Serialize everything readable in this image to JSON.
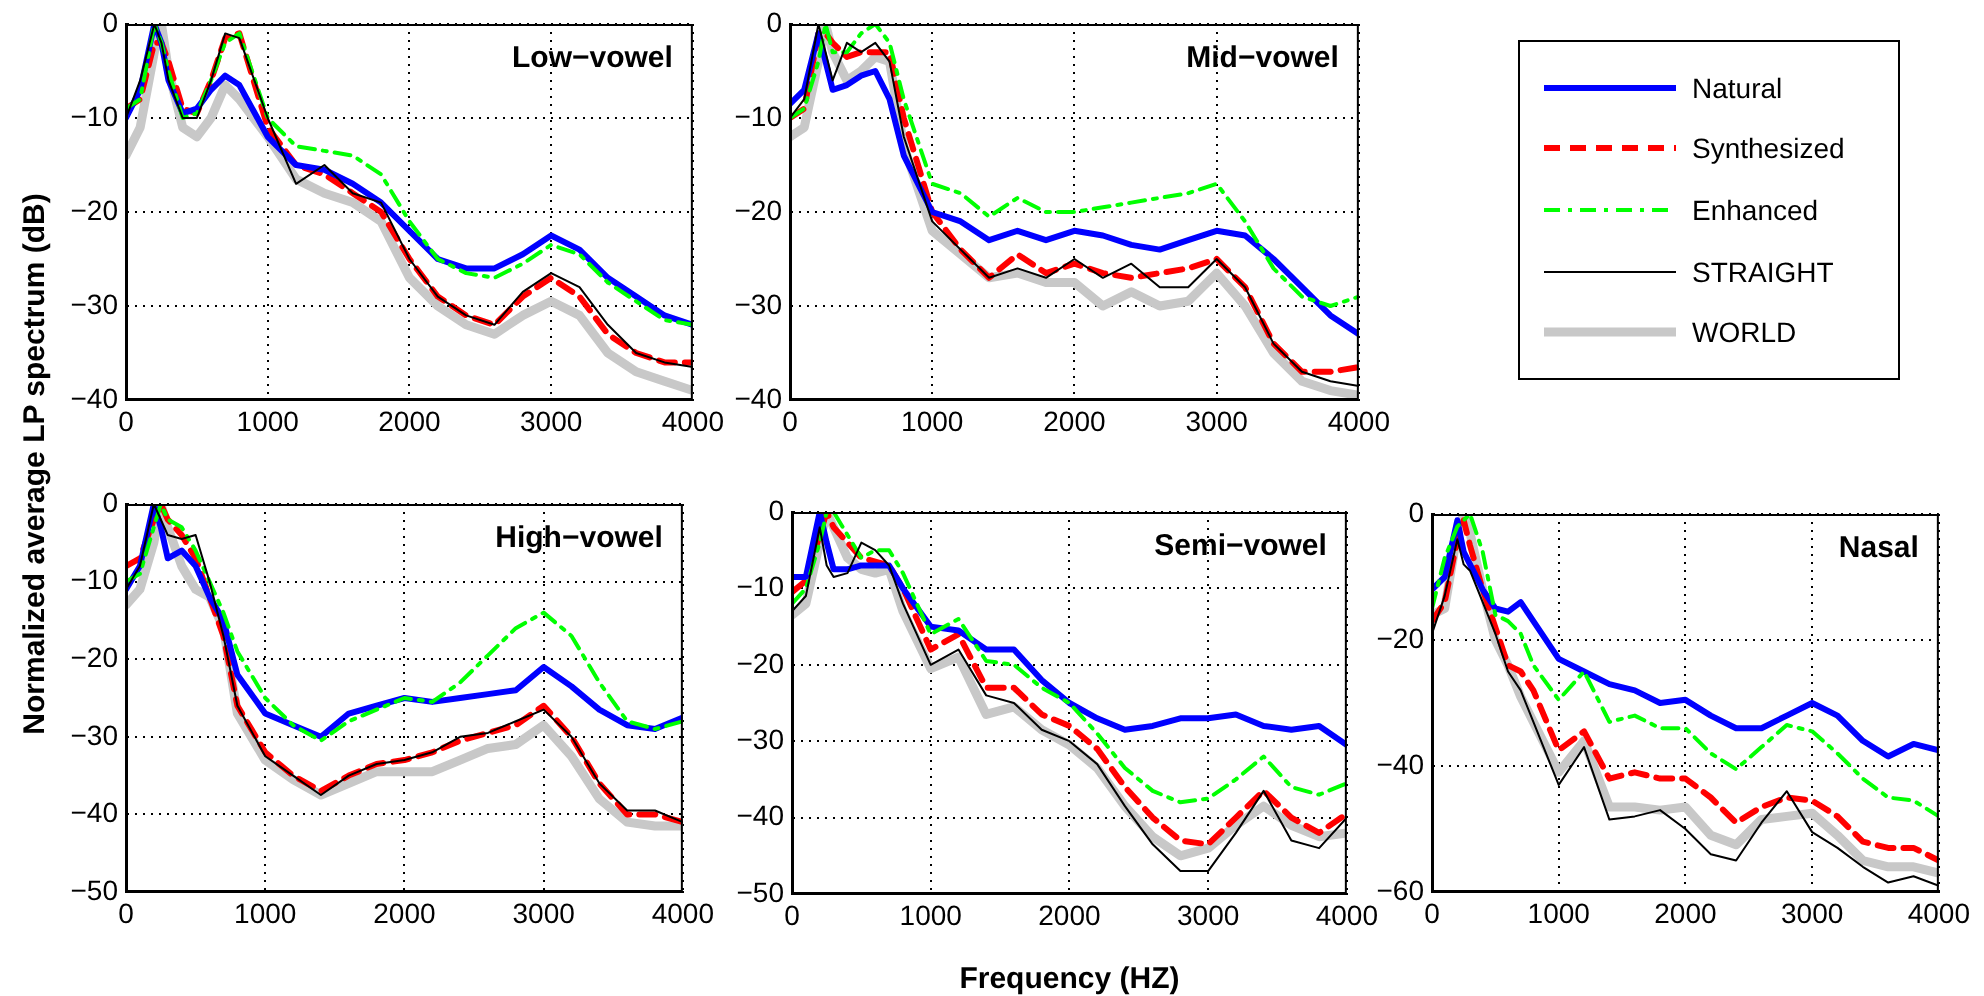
{
  "chart_data": [
    {
      "type": "line",
      "title": "Low−vowel",
      "ylabel": "Normalized average LP spectrum (dB)",
      "x": [
        0,
        100,
        200,
        250,
        300,
        400,
        500,
        600,
        700,
        800,
        1000,
        1200,
        1400,
        1600,
        1800,
        2000,
        2200,
        2400,
        2600,
        2800,
        3000,
        3200,
        3400,
        3600,
        3800,
        4000
      ],
      "xlim": [
        0,
        4000
      ],
      "xticks": [
        0,
        1000,
        2000,
        3000,
        4000
      ],
      "ylim": [
        -40,
        0
      ],
      "yticks": [
        -40,
        -30,
        -20,
        -10,
        0
      ],
      "grid": true,
      "series": [
        {
          "color": "#0000ff",
          "line_style": "solid",
          "values": [
            -10,
            -7,
            0,
            -2,
            -6,
            -9.5,
            -9,
            -7,
            -5.5,
            -6.5,
            -12,
            -15,
            -15.5,
            -17,
            -19,
            -22,
            -25,
            -26,
            -26,
            -24.5,
            -22.5,
            -24,
            -27,
            -29,
            -31,
            -32
          ]
        },
        {
          "color": "#ff0000",
          "line_style": "dashed",
          "values": [
            -9,
            -8,
            -2,
            -2,
            -4,
            -9,
            -9.5,
            -6,
            -1.5,
            -1,
            -11,
            -15,
            -16,
            -18,
            -20,
            -25,
            -29,
            -31,
            -32,
            -29,
            -27,
            -29,
            -33,
            -35,
            -36,
            -36
          ]
        },
        {
          "color": "#00ff00",
          "line_style": "dashdot",
          "values": [
            -9,
            -8,
            0,
            -2,
            -5,
            -10,
            -9.5,
            -6,
            -2,
            -1,
            -10,
            -13,
            -13.5,
            -14,
            -16,
            -21,
            -25,
            -26.5,
            -27,
            -25.5,
            -23.5,
            -24.5,
            -27.5,
            -29.5,
            -31.5,
            -32
          ]
        },
        {
          "color": "#000000",
          "line_style": "solid",
          "values": [
            -10,
            -6,
            0,
            -2,
            -6,
            -10,
            -10,
            -6,
            -1,
            -1.5,
            -10,
            -17,
            -15,
            -18,
            -19,
            -25,
            -29,
            -31,
            -32,
            -28.5,
            -26.5,
            -28,
            -32,
            -35,
            -36,
            -36.5
          ]
        },
        {
          "color": "#c8c8c8",
          "line_style": "solid",
          "values": [
            -14,
            -11,
            -3,
            0,
            -5,
            -11,
            -12,
            -10,
            -6.5,
            -8,
            -12,
            -16.5,
            -18,
            -19,
            -21,
            -27,
            -30,
            -32,
            -33,
            -31,
            -29.5,
            -31,
            -35,
            -37,
            -38,
            -39
          ]
        }
      ]
    },
    {
      "type": "line",
      "title": "Mid−vowel",
      "legend": "right",
      "x": [
        0,
        100,
        200,
        250,
        300,
        400,
        500,
        600,
        700,
        800,
        1000,
        1200,
        1400,
        1600,
        1800,
        2000,
        2200,
        2400,
        2600,
        2800,
        3000,
        3200,
        3400,
        3600,
        3800,
        4000
      ],
      "xlim": [
        0,
        4000
      ],
      "xticks": [
        0,
        1000,
        2000,
        3000,
        4000
      ],
      "ylim": [
        -40,
        0
      ],
      "yticks": [
        -40,
        -30,
        -20,
        -10,
        0
      ],
      "grid": true,
      "series": [
        {
          "name": "Natural",
          "color": "#0000ff",
          "line_style": "solid",
          "values": [
            -8.5,
            -7,
            -1,
            -4,
            -7,
            -6.5,
            -5.5,
            -5,
            -8,
            -14,
            -20,
            -21,
            -23,
            -22,
            -23,
            -22,
            -22.5,
            -23.5,
            -24,
            -23,
            -22,
            -22.5,
            -25,
            -28,
            -31,
            -33
          ]
        },
        {
          "name": "Synthesized",
          "color": "#ff0000",
          "line_style": "dashed",
          "values": [
            -10,
            -9,
            -1,
            -1,
            -2,
            -3.5,
            -3,
            -3,
            -3,
            -10,
            -20,
            -24,
            -27,
            -24.5,
            -26.5,
            -25.5,
            -26.5,
            -27,
            -26.5,
            -26,
            -25,
            -28,
            -34,
            -37,
            -37,
            -36.5
          ]
        },
        {
          "name": "Enhanced",
          "color": "#00ff00",
          "line_style": "dashdot",
          "values": [
            -10,
            -9,
            -4,
            0,
            -3,
            -3,
            -1,
            0,
            -2,
            -8,
            -17,
            -18,
            -20.5,
            -18.5,
            -20,
            -20,
            -19.5,
            -19,
            -18.5,
            -18,
            -17,
            -21,
            -26,
            -29,
            -30,
            -29
          ]
        },
        {
          "name": "STRAIGHT",
          "color": "#000000",
          "line_style": "solid",
          "values": [
            -10,
            -8,
            0,
            -3,
            -6,
            -2,
            -3,
            -2,
            -4,
            -12,
            -21,
            -24,
            -27,
            -26,
            -27,
            -25,
            -27,
            -25.5,
            -28,
            -28,
            -25,
            -28,
            -34,
            -37,
            -38,
            -38.5
          ]
        },
        {
          "name": "WORLD",
          "color": "#c8c8c8",
          "line_style": "solid",
          "values": [
            -12,
            -11,
            -4,
            0,
            -3,
            -6,
            -5,
            -3.5,
            -4,
            -13,
            -22,
            -24.5,
            -27,
            -26.5,
            -27.5,
            -27.5,
            -30,
            -28.5,
            -30,
            -29.5,
            -26.5,
            -30,
            -35,
            -38,
            -39,
            -39.5
          ]
        }
      ]
    },
    {
      "type": "line",
      "title": "High−vowel",
      "x": [
        0,
        100,
        200,
        250,
        300,
        400,
        500,
        600,
        700,
        800,
        1000,
        1200,
        1400,
        1600,
        1800,
        2000,
        2200,
        2400,
        2600,
        2800,
        3000,
        3200,
        3400,
        3600,
        3800,
        4000
      ],
      "xlim": [
        0,
        4000
      ],
      "xticks": [
        0,
        1000,
        2000,
        3000,
        4000
      ],
      "ylim": [
        -50,
        0
      ],
      "yticks": [
        -50,
        -40,
        -30,
        -20,
        -10,
        0
      ],
      "grid": true,
      "series": [
        {
          "color": "#0000ff",
          "line_style": "solid",
          "values": [
            -11,
            -8,
            0,
            -3,
            -7,
            -6,
            -8,
            -12,
            -15,
            -22,
            -27,
            -28.5,
            -30,
            -27,
            -26,
            -25,
            -25.5,
            -25,
            -24.5,
            -24,
            -21,
            -23.5,
            -26.5,
            -28.5,
            -29,
            -27.5
          ]
        },
        {
          "color": "#ff0000",
          "line_style": "dashed",
          "values": [
            -8,
            -7,
            -2,
            0,
            -2,
            -4,
            -7,
            -12,
            -17,
            -26,
            -32,
            -35,
            -37,
            -35,
            -33.5,
            -33,
            -32,
            -30.5,
            -29.5,
            -28.5,
            -26,
            -30,
            -36,
            -40,
            -40,
            -41
          ]
        },
        {
          "color": "#00ff00",
          "line_style": "dashdot",
          "values": [
            -10,
            -9,
            -3,
            0,
            -2,
            -3,
            -6,
            -10,
            -14,
            -19,
            -25,
            -28.5,
            -30.5,
            -28,
            -26.5,
            -25,
            -25.5,
            -23,
            -19.5,
            -16,
            -14,
            -17,
            -23,
            -28,
            -29,
            -28
          ]
        },
        {
          "color": "#000000",
          "line_style": "solid",
          "values": [
            -11,
            -8,
            0,
            -2,
            -4,
            -4.5,
            -4,
            -10,
            -17,
            -26,
            -32.5,
            -35,
            -37.5,
            -35,
            -33.5,
            -33,
            -32,
            -30,
            -29.5,
            -28,
            -26.5,
            -30,
            -36,
            -39.5,
            -39.5,
            -41
          ]
        },
        {
          "color": "#c8c8c8",
          "line_style": "solid",
          "values": [
            -13,
            -11,
            -5,
            0,
            -3,
            -8,
            -11,
            -12,
            -16,
            -27,
            -33,
            -35.5,
            -37.5,
            -36,
            -34.5,
            -34.5,
            -34.5,
            -33,
            -31.5,
            -31,
            -28.5,
            -32.5,
            -38,
            -41,
            -41.5,
            -41.5
          ]
        }
      ]
    },
    {
      "type": "line",
      "title": "Semi−vowel",
      "xlabel": "Frequency (HZ)",
      "x": [
        0,
        100,
        200,
        250,
        300,
        400,
        500,
        600,
        700,
        800,
        1000,
        1200,
        1400,
        1600,
        1800,
        2000,
        2200,
        2400,
        2600,
        2800,
        3000,
        3200,
        3400,
        3600,
        3800,
        4000
      ],
      "xlim": [
        0,
        4000
      ],
      "xticks": [
        0,
        1000,
        2000,
        3000,
        4000
      ],
      "ylim": [
        -50,
        0
      ],
      "yticks": [
        -50,
        -40,
        -30,
        -20,
        -10,
        0
      ],
      "grid": true,
      "series": [
        {
          "color": "#0000ff",
          "line_style": "solid",
          "values": [
            -8.5,
            -8.5,
            0,
            -4,
            -7.5,
            -7.5,
            -7,
            -7,
            -7,
            -10,
            -15,
            -15.5,
            -18,
            -18,
            -22,
            -25,
            -27,
            -28.5,
            -28,
            -27,
            -27,
            -26.5,
            -28,
            -28.5,
            -28,
            -30.5
          ]
        },
        {
          "color": "#ff0000",
          "line_style": "dashed",
          "values": [
            -10.5,
            -9,
            -3,
            0,
            -2,
            -4,
            -6,
            -6.5,
            -7,
            -10,
            -18,
            -16,
            -23,
            -23,
            -26.5,
            -28,
            -31,
            -36,
            -40,
            -43,
            -43.5,
            -40,
            -36.5,
            -40,
            -42,
            -39.5
          ]
        },
        {
          "color": "#00ff00",
          "line_style": "dashdot",
          "values": [
            -12,
            -10,
            -4,
            0,
            0,
            -3,
            -6,
            -5,
            -5,
            -8,
            -16,
            -14,
            -19.5,
            -20,
            -23,
            -25,
            -29,
            -33.5,
            -36.5,
            -38,
            -37.5,
            -35,
            -32,
            -36,
            -37,
            -35.5
          ]
        },
        {
          "color": "#000000",
          "line_style": "solid",
          "values": [
            -13,
            -11,
            -2,
            -7,
            -8.5,
            -8,
            -4,
            -5,
            -7,
            -12,
            -20,
            -18,
            -24,
            -25,
            -28.5,
            -30,
            -33,
            -38.5,
            -43.5,
            -47,
            -47,
            -42,
            -36.5,
            -43,
            -44,
            -40
          ]
        },
        {
          "color": "#c8c8c8",
          "line_style": "solid",
          "values": [
            -13.5,
            -12,
            -4,
            0,
            -2,
            -6,
            -7.5,
            -8,
            -7.5,
            -13,
            -20.5,
            -19,
            -26.5,
            -25.5,
            -28.5,
            -30.5,
            -33.5,
            -38.5,
            -42.5,
            -45,
            -44,
            -41,
            -38.5,
            -41,
            -42.5,
            -42
          ]
        }
      ]
    },
    {
      "type": "line",
      "title": "Nasal",
      "x": [
        0,
        100,
        200,
        250,
        300,
        400,
        500,
        600,
        700,
        800,
        1000,
        1200,
        1400,
        1600,
        1800,
        2000,
        2200,
        2400,
        2600,
        2800,
        3000,
        3200,
        3400,
        3600,
        3800,
        4000
      ],
      "xlim": [
        0,
        4000
      ],
      "xticks": [
        0,
        1000,
        2000,
        3000,
        4000
      ],
      "ylim": [
        -60,
        0
      ],
      "yticks": [
        -60,
        -40,
        -20,
        0
      ],
      "grid": true,
      "series": [
        {
          "color": "#0000ff",
          "line_style": "solid",
          "values": [
            -12,
            -10,
            -1,
            -6,
            -8,
            -12,
            -15,
            -15.5,
            -14,
            -17,
            -23,
            -25,
            -27,
            -28,
            -30,
            -29.5,
            -32,
            -34,
            -34,
            -32,
            -30,
            -32,
            -36,
            -38.5,
            -36.5,
            -37.5
          ]
        },
        {
          "color": "#ff0000",
          "line_style": "dashed",
          "values": [
            -17,
            -14,
            -4,
            -1,
            -5,
            -12,
            -18,
            -24,
            -25,
            -28,
            -37.5,
            -34.5,
            -42,
            -41,
            -42,
            -42,
            -45,
            -49,
            -46.5,
            -45,
            -45.5,
            -48,
            -52,
            -53,
            -53,
            -55
          ]
        },
        {
          "color": "#00ff00",
          "line_style": "dashdot",
          "values": [
            -15,
            -7,
            -2,
            -1,
            0,
            -6,
            -16,
            -17,
            -19,
            -24,
            -29.5,
            -25,
            -33,
            -32,
            -34,
            -34,
            -38,
            -40.5,
            -37,
            -33.5,
            -34.5,
            -38,
            -42,
            -45,
            -45.5,
            -48
          ]
        },
        {
          "color": "#000000",
          "line_style": "solid",
          "values": [
            -19,
            -13,
            -4,
            -8,
            -9,
            -14,
            -19,
            -25,
            -28,
            -33,
            -43,
            -37,
            -48.5,
            -48,
            -47,
            -50,
            -54,
            -55,
            -49,
            -44,
            -50.5,
            -53,
            -56,
            -58.5,
            -57.5,
            -59
          ]
        },
        {
          "color": "#c8c8c8",
          "line_style": "solid",
          "values": [
            -16,
            -15,
            -3,
            0,
            -3,
            -12,
            -20,
            -24,
            -29,
            -33,
            -41,
            -36,
            -46.5,
            -46.5,
            -47,
            -46.5,
            -51,
            -52.5,
            -48.5,
            -48,
            -47.5,
            -51,
            -55,
            -56,
            -56,
            -57
          ]
        }
      ]
    }
  ]
}
